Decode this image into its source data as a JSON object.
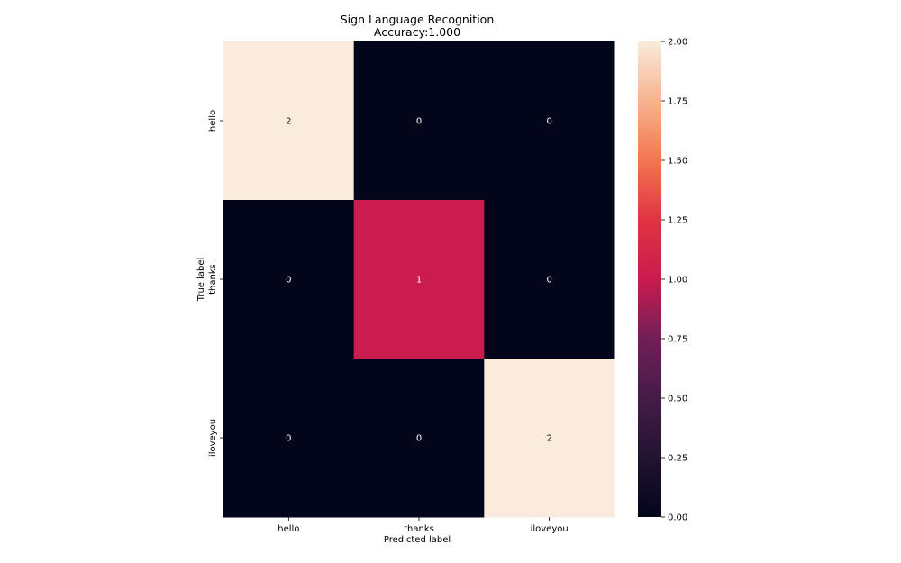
{
  "chart_data": {
    "type": "heatmap",
    "title": "Sign Language Recognition",
    "subtitle": "Accuracy:1.000",
    "xlabel": "Predicted label",
    "ylabel": "True label",
    "x_categories": [
      "hello",
      "thanks",
      "iloveyou"
    ],
    "y_categories": [
      "hello",
      "thanks",
      "iloveyou"
    ],
    "values": [
      [
        2,
        0,
        0
      ],
      [
        0,
        1,
        0
      ],
      [
        0,
        0,
        2
      ]
    ],
    "colormap": "rocket",
    "colorbar": {
      "range": [
        0.0,
        2.0
      ],
      "ticks": [
        "0.00",
        "0.25",
        "0.50",
        "0.75",
        "1.00",
        "1.25",
        "1.50",
        "1.75",
        "2.00"
      ]
    },
    "colors": {
      "low": "#03051a",
      "mid": "#cb1b4f",
      "high": "#faebdd"
    }
  }
}
